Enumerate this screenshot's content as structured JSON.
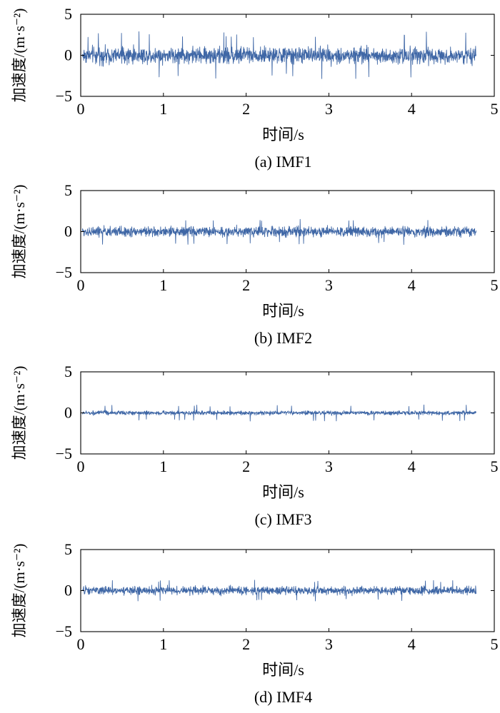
{
  "chart_data": [
    {
      "type": "line",
      "caption": "(a) IMF1",
      "xlabel": "时间/s",
      "ylabel": "加速度/(m·s⁻²)",
      "xlim": [
        0,
        5
      ],
      "ylim": [
        -5,
        5
      ],
      "xticks": [
        "0",
        "1",
        "2",
        "3",
        "4",
        "5"
      ],
      "yticks": [
        "5",
        "0",
        "−5"
      ],
      "grid": false,
      "x_range": [
        0.02,
        4.78
      ],
      "signal": {
        "envelope": 1.0,
        "peak": 2.9,
        "description": "dense vibration signal"
      },
      "color": "#3f67a6"
    },
    {
      "type": "line",
      "caption": "(b) IMF2",
      "xlabel": "时间/s",
      "ylabel": "加速度/(m·s⁻²)",
      "xlim": [
        0,
        5
      ],
      "ylim": [
        -5,
        5
      ],
      "xticks": [
        "0",
        "1",
        "2",
        "3",
        "4",
        "5"
      ],
      "yticks": [
        "5",
        "0",
        "−5"
      ],
      "grid": false,
      "x_range": [
        0.02,
        4.78
      ],
      "signal": {
        "envelope": 0.6,
        "peak": 1.6,
        "description": "dense vibration signal"
      },
      "color": "#3f67a6"
    },
    {
      "type": "line",
      "caption": "(c) IMF3",
      "xlabel": "时间/s",
      "ylabel": "加速度/(m·s⁻²)",
      "xlim": [
        0,
        5
      ],
      "ylim": [
        -5,
        5
      ],
      "xticks": [
        "0",
        "1",
        "2",
        "3",
        "4",
        "5"
      ],
      "yticks": [
        "5",
        "0",
        "−5"
      ],
      "grid": false,
      "x_range": [
        0.02,
        4.78
      ],
      "signal": {
        "envelope": 0.25,
        "peak": 1.0,
        "description": "dense vibration signal"
      },
      "color": "#3f67a6"
    },
    {
      "type": "line",
      "caption": "(d) IMF4",
      "xlabel": "时间/s",
      "ylabel": "加速度/(m·s⁻²)",
      "xlim": [
        0,
        5
      ],
      "ylim": [
        -5,
        5
      ],
      "xticks": [
        "0",
        "1",
        "2",
        "3",
        "4",
        "5"
      ],
      "yticks": [
        "5",
        "0",
        "−5"
      ],
      "grid": false,
      "x_range": [
        0.02,
        4.78
      ],
      "signal": {
        "envelope": 0.5,
        "peak": 1.3,
        "description": "dense vibration signal"
      },
      "color": "#3f67a6"
    }
  ]
}
